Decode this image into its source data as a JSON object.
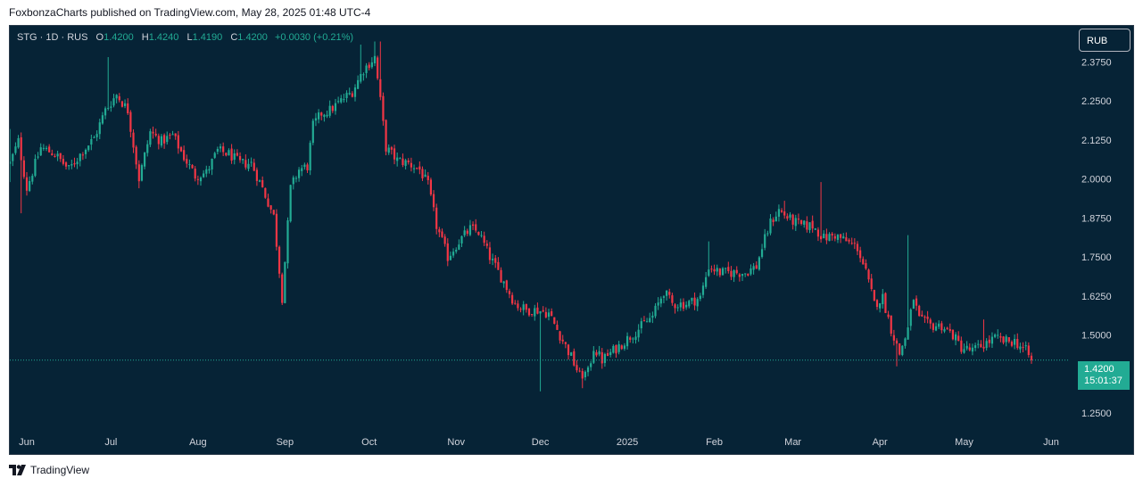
{
  "caption": "FoxbonzaCharts published on TradingView.com, May 28, 2025 01:48 UTC-4",
  "legend": {
    "symbol": "STG · 1D · RUS",
    "o_label": "O",
    "o_value": "1.4200",
    "h_label": "H",
    "h_value": "1.4240",
    "l_label": "L",
    "l_value": "1.4190",
    "c_label": "C",
    "c_value": "1.4200",
    "change": "+0.0030 (+0.21%)"
  },
  "currency_button": "RUB",
  "price_tag": {
    "price": "1.4200",
    "countdown": "15:01:37"
  },
  "footer": {
    "brand": "TradingView"
  },
  "colors": {
    "up": "#22ab94",
    "down": "#f23645",
    "background": "#062336",
    "text": "#d1d4dc"
  },
  "chart_data": {
    "type": "candlestick",
    "x_axis": {
      "labels": [
        {
          "text": "Jun",
          "day": 0
        },
        {
          "text": "Jul",
          "day": 30
        },
        {
          "text": "Aug",
          "day": 61
        },
        {
          "text": "Sep",
          "day": 92
        },
        {
          "text": "Oct",
          "day": 122
        },
        {
          "text": "Nov",
          "day": 153
        },
        {
          "text": "Dec",
          "day": 183
        },
        {
          "text": "2025",
          "day": 214
        },
        {
          "text": "Feb",
          "day": 245
        },
        {
          "text": "Mar",
          "day": 273
        },
        {
          "text": "Apr",
          "day": 304
        },
        {
          "text": "May",
          "day": 334
        },
        {
          "text": "Jun",
          "day": 365
        }
      ]
    },
    "y_axis": {
      "ticks": [
        "2.3750",
        "2.2500",
        "2.1250",
        "2.0000",
        "1.8750",
        "1.7500",
        "1.6250",
        "1.5000",
        "1.2500"
      ],
      "range": [
        1.205,
        2.49
      ]
    },
    "last_price": 1.42,
    "anchors": [
      {
        "d": -6,
        "p": 2.05
      },
      {
        "d": -3,
        "p": 2.12
      },
      {
        "d": 0,
        "p": 1.97
      },
      {
        "d": 5,
        "p": 2.1
      },
      {
        "d": 10,
        "p": 2.08
      },
      {
        "d": 15,
        "p": 2.03
      },
      {
        "d": 20,
        "p": 2.09
      },
      {
        "d": 24,
        "p": 2.13
      },
      {
        "d": 28,
        "p": 2.22
      },
      {
        "d": 32,
        "p": 2.27
      },
      {
        "d": 36,
        "p": 2.22
      },
      {
        "d": 40,
        "p": 2.0
      },
      {
        "d": 44,
        "p": 2.15
      },
      {
        "d": 48,
        "p": 2.12
      },
      {
        "d": 52,
        "p": 2.14
      },
      {
        "d": 56,
        "p": 2.07
      },
      {
        "d": 60,
        "p": 2.01
      },
      {
        "d": 64,
        "p": 2.02
      },
      {
        "d": 68,
        "p": 2.09
      },
      {
        "d": 72,
        "p": 2.08
      },
      {
        "d": 76,
        "p": 2.05
      },
      {
        "d": 80,
        "p": 2.05
      },
      {
        "d": 84,
        "p": 1.97
      },
      {
        "d": 88,
        "p": 1.88
      },
      {
        "d": 91,
        "p": 1.62
      },
      {
        "d": 94,
        "p": 1.97
      },
      {
        "d": 97,
        "p": 2.03
      },
      {
        "d": 100,
        "p": 2.04
      },
      {
        "d": 102,
        "p": 2.17
      },
      {
        "d": 105,
        "p": 2.21
      },
      {
        "d": 108,
        "p": 2.22
      },
      {
        "d": 112,
        "p": 2.25
      },
      {
        "d": 116,
        "p": 2.28
      },
      {
        "d": 120,
        "p": 2.35
      },
      {
        "d": 124,
        "p": 2.39
      },
      {
        "d": 126,
        "p": 2.25
      },
      {
        "d": 128,
        "p": 2.1
      },
      {
        "d": 132,
        "p": 2.06
      },
      {
        "d": 136,
        "p": 2.05
      },
      {
        "d": 140,
        "p": 2.03
      },
      {
        "d": 143,
        "p": 1.98
      },
      {
        "d": 146,
        "p": 1.85
      },
      {
        "d": 150,
        "p": 1.75
      },
      {
        "d": 154,
        "p": 1.8
      },
      {
        "d": 158,
        "p": 1.84
      },
      {
        "d": 161,
        "p": 1.83
      },
      {
        "d": 165,
        "p": 1.75
      },
      {
        "d": 170,
        "p": 1.67
      },
      {
        "d": 174,
        "p": 1.6
      },
      {
        "d": 178,
        "p": 1.58
      },
      {
        "d": 182,
        "p": 1.58
      },
      {
        "d": 186,
        "p": 1.57
      },
      {
        "d": 190,
        "p": 1.5
      },
      {
        "d": 194,
        "p": 1.43
      },
      {
        "d": 197,
        "p": 1.37
      },
      {
        "d": 200,
        "p": 1.38
      },
      {
        "d": 202,
        "p": 1.46
      },
      {
        "d": 205,
        "p": 1.42
      },
      {
        "d": 209,
        "p": 1.45
      },
      {
        "d": 213,
        "p": 1.48
      },
      {
        "d": 218,
        "p": 1.52
      },
      {
        "d": 223,
        "p": 1.56
      },
      {
        "d": 227,
        "p": 1.64
      },
      {
        "d": 230,
        "p": 1.6
      },
      {
        "d": 235,
        "p": 1.6
      },
      {
        "d": 240,
        "p": 1.62
      },
      {
        "d": 243,
        "p": 1.72
      },
      {
        "d": 247,
        "p": 1.7
      },
      {
        "d": 252,
        "p": 1.7
      },
      {
        "d": 256,
        "p": 1.7
      },
      {
        "d": 260,
        "p": 1.72
      },
      {
        "d": 262,
        "p": 1.78
      },
      {
        "d": 265,
        "p": 1.86
      },
      {
        "d": 268,
        "p": 1.9
      },
      {
        "d": 272,
        "p": 1.87
      },
      {
        "d": 276,
        "p": 1.85
      },
      {
        "d": 280,
        "p": 1.85
      },
      {
        "d": 284,
        "p": 1.81
      },
      {
        "d": 288,
        "p": 1.82
      },
      {
        "d": 292,
        "p": 1.8
      },
      {
        "d": 296,
        "p": 1.78
      },
      {
        "d": 299,
        "p": 1.7
      },
      {
        "d": 302,
        "p": 1.6
      },
      {
        "d": 305,
        "p": 1.62
      },
      {
        "d": 308,
        "p": 1.52
      },
      {
        "d": 311,
        "p": 1.44
      },
      {
        "d": 314,
        "p": 1.52
      },
      {
        "d": 316,
        "p": 1.62
      },
      {
        "d": 318,
        "p": 1.55
      },
      {
        "d": 322,
        "p": 1.53
      },
      {
        "d": 326,
        "p": 1.53
      },
      {
        "d": 330,
        "p": 1.5
      },
      {
        "d": 333,
        "p": 1.46
      },
      {
        "d": 337,
        "p": 1.45
      },
      {
        "d": 341,
        "p": 1.47
      },
      {
        "d": 345,
        "p": 1.49
      },
      {
        "d": 348,
        "p": 1.48
      },
      {
        "d": 352,
        "p": 1.48
      },
      {
        "d": 356,
        "p": 1.45
      },
      {
        "d": 358,
        "p": 1.42
      }
    ],
    "spikes": [
      {
        "d": -6,
        "high": 2.16,
        "low": 1.99
      },
      {
        "d": -2,
        "low": 1.89
      },
      {
        "d": 29,
        "high": 2.39
      },
      {
        "d": 40,
        "low": 1.97
      },
      {
        "d": 90,
        "low": 1.9
      },
      {
        "d": 91,
        "low": 1.6
      },
      {
        "d": 119,
        "high": 2.43
      },
      {
        "d": 124,
        "high": 2.44
      },
      {
        "d": 126,
        "high": 2.44
      },
      {
        "d": 183,
        "low": 1.32
      },
      {
        "d": 198,
        "low": 1.33
      },
      {
        "d": 243,
        "high": 1.8
      },
      {
        "d": 270,
        "high": 1.93
      },
      {
        "d": 283,
        "high": 1.99
      },
      {
        "d": 310,
        "low": 1.4
      },
      {
        "d": 314,
        "high": 1.82
      },
      {
        "d": 337,
        "low": 1.44
      },
      {
        "d": 341,
        "high": 1.55
      }
    ]
  }
}
